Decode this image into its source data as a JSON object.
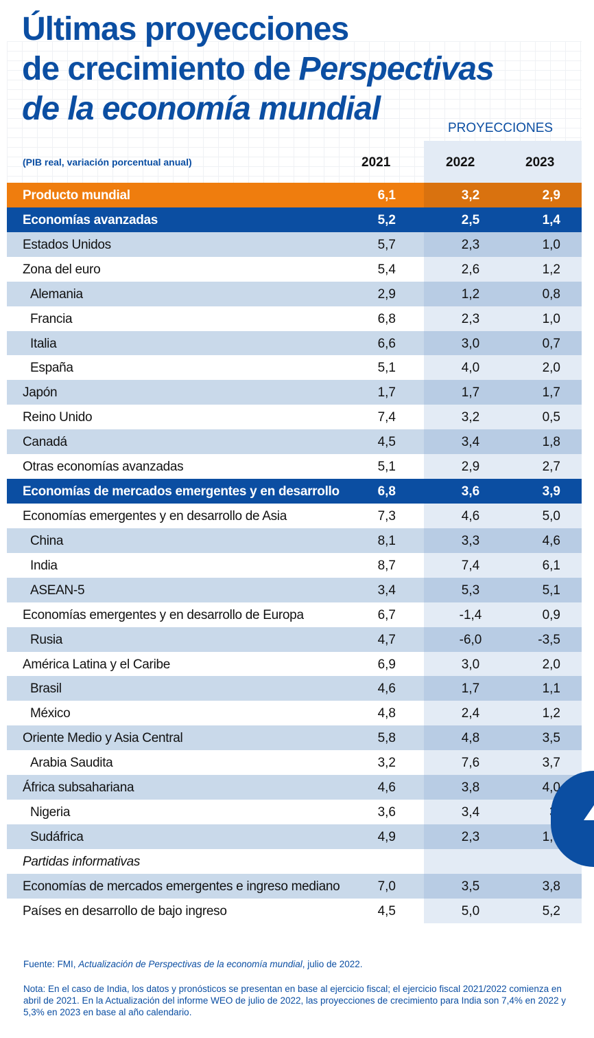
{
  "title": {
    "line1": "Últimas proyecciones",
    "line2_a": "de crecimiento de ",
    "line2_b": "Perspectivas",
    "line3": "de la economía mundial"
  },
  "header": {
    "projections_label": "PROYECCIONES",
    "subtitle": "(PIB real, variación porcentual anual)",
    "years": [
      "2021",
      "2022",
      "2023"
    ]
  },
  "colors": {
    "brand_blue": "#0b4ea2",
    "orange": "#ef7d0e",
    "row_light": "#c9d9ea"
  },
  "rows": [
    {
      "label": "Producto mundial",
      "v2021": "6,1",
      "v2022": "3,2",
      "v2023": "2,9",
      "style": "orange"
    },
    {
      "label": "Economías avanzadas",
      "v2021": "5,2",
      "v2022": "2,5",
      "v2023": "1,4",
      "style": "blue"
    },
    {
      "label": "Estados Unidos",
      "v2021": "5,7",
      "v2022": "2,3",
      "v2023": "1,0",
      "style": "top"
    },
    {
      "label": "Zona del euro",
      "v2021": "5,4",
      "v2022": "2,6",
      "v2023": "1,2",
      "style": "top"
    },
    {
      "label": "Alemania",
      "v2021": "2,9",
      "v2022": "1,2",
      "v2023": "0,8",
      "style": "sub"
    },
    {
      "label": "Francia",
      "v2021": "6,8",
      "v2022": "2,3",
      "v2023": "1,0",
      "style": "sub"
    },
    {
      "label": "Italia",
      "v2021": "6,6",
      "v2022": "3,0",
      "v2023": "0,7",
      "style": "sub"
    },
    {
      "label": "España",
      "v2021": "5,1",
      "v2022": "4,0",
      "v2023": "2,0",
      "style": "sub"
    },
    {
      "label": "Japón",
      "v2021": "1,7",
      "v2022": "1,7",
      "v2023": "1,7",
      "style": "top"
    },
    {
      "label": "Reino Unido",
      "v2021": "7,4",
      "v2022": "3,2",
      "v2023": "0,5",
      "style": "top"
    },
    {
      "label": "Canadá",
      "v2021": "4,5",
      "v2022": "3,4",
      "v2023": "1,8",
      "style": "top"
    },
    {
      "label": "Otras economías avanzadas",
      "v2021": "5,1",
      "v2022": "2,9",
      "v2023": "2,7",
      "style": "top"
    },
    {
      "label": "Economías de mercados emergentes y en desarrollo",
      "v2021": "6,8",
      "v2022": "3,6",
      "v2023": "3,9",
      "style": "blue"
    },
    {
      "label": "Economías emergentes y en desarrollo de Asia",
      "v2021": "7,3",
      "v2022": "4,6",
      "v2023": "5,0",
      "style": "top"
    },
    {
      "label": "China",
      "v2021": "8,1",
      "v2022": "3,3",
      "v2023": "4,6",
      "style": "sub"
    },
    {
      "label": "India",
      "v2021": "8,7",
      "v2022": "7,4",
      "v2023": "6,1",
      "style": "sub"
    },
    {
      "label": "ASEAN-5",
      "v2021": "3,4",
      "v2022": "5,3",
      "v2023": "5,1",
      "style": "sub"
    },
    {
      "label": "Economías emergentes y en desarrollo de Europa",
      "v2021": "6,7",
      "v2022": "-1,4",
      "v2023": "0,9",
      "style": "top"
    },
    {
      "label": "Rusia",
      "v2021": "4,7",
      "v2022": "-6,0",
      "v2023": "-3,5",
      "style": "sub"
    },
    {
      "label": "América Latina y el Caribe",
      "v2021": "6,9",
      "v2022": "3,0",
      "v2023": "2,0",
      "style": "top"
    },
    {
      "label": "Brasil",
      "v2021": "4,6",
      "v2022": "1,7",
      "v2023": "1,1",
      "style": "sub"
    },
    {
      "label": "México",
      "v2021": "4,8",
      "v2022": "2,4",
      "v2023": "1,2",
      "style": "sub"
    },
    {
      "label": "Oriente Medio y Asia Central",
      "v2021": "5,8",
      "v2022": "4,8",
      "v2023": "3,5",
      "style": "top"
    },
    {
      "label": "Arabia Saudita",
      "v2021": "3,2",
      "v2022": "7,6",
      "v2023": "3,7",
      "style": "sub"
    },
    {
      "label": "África subsahariana",
      "v2021": "4,6",
      "v2022": "3,8",
      "v2023": "4,0",
      "style": "top"
    },
    {
      "label": "Nigeria",
      "v2021": "3,6",
      "v2022": "3,4",
      "v2023": "3,",
      "style": "sub"
    },
    {
      "label": "Sudáfrica",
      "v2021": "4,9",
      "v2022": "2,3",
      "v2023": "1,4",
      "style": "sub"
    },
    {
      "label": "Partidas informativas",
      "v2021": "",
      "v2022": "",
      "v2023": "",
      "style": "italic"
    },
    {
      "label": "Economías de mercados emergentes e ingreso mediano",
      "v2021": "7,0",
      "v2022": "3,5",
      "v2023": "3,8",
      "style": "top"
    },
    {
      "label": "Países en desarrollo de bajo ingreso",
      "v2021": "4,5",
      "v2022": "5,0",
      "v2023": "5,2",
      "style": "top"
    }
  ],
  "footer": {
    "source_prefix": "Fuente: FMI, ",
    "source_italic": "Actualización de Perspectivas de la economía mundial",
    "source_suffix": ", julio de 2022.",
    "note": "Nota: En el caso de India, los datos y pronósticos se presentan en base al ejercicio fiscal; el ejercicio fiscal 2021/2022 comienza en abril de 2021. En la Actualización del informe WEO de julio de 2022, las proyecciones de crecimiento para India son 7,4% en 2022 y 5,3% en 2023 en base al año calendario."
  }
}
